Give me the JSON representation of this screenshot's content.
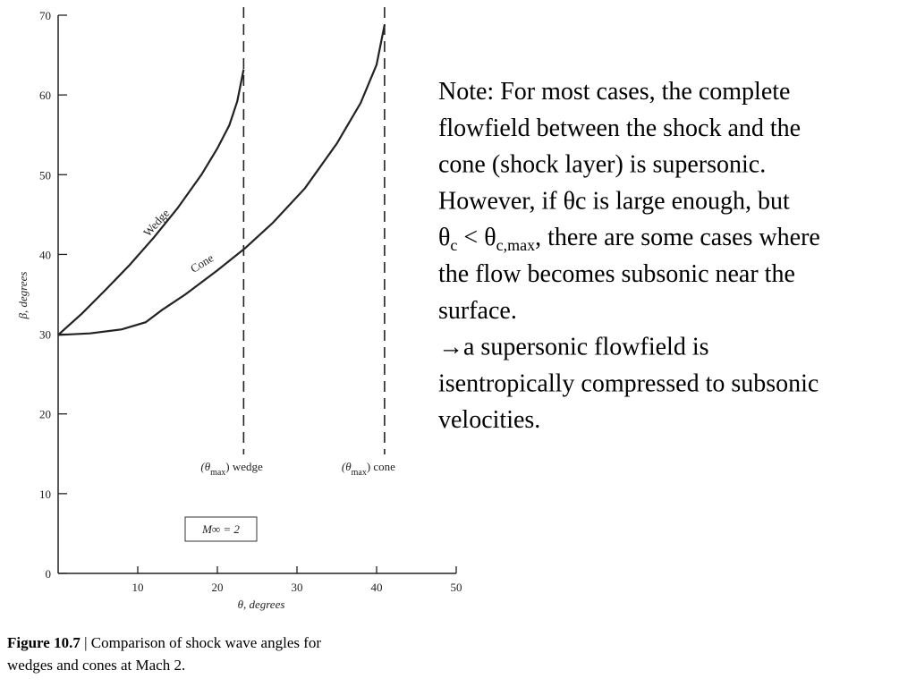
{
  "chart_data": {
    "type": "line",
    "xlabel": "θ, degrees",
    "ylabel": "β, degrees",
    "xlim": [
      0,
      50
    ],
    "xticks": [
      10,
      20,
      30,
      40,
      50
    ],
    "ylim": [
      0,
      70
    ],
    "yticks": [
      0,
      10,
      20,
      30,
      40,
      50,
      60,
      70
    ],
    "series": [
      {
        "name": "Wedge",
        "color": "#222222",
        "x": [
          0,
          3,
          6,
          9,
          12,
          15,
          18,
          20,
          21.5,
          22.5,
          23.3
        ],
        "values": [
          29.9,
          32.6,
          35.6,
          38.7,
          42.1,
          45.8,
          50.0,
          53.3,
          56.2,
          59.2,
          63.2
        ]
      },
      {
        "name": "Cone",
        "color": "#222222",
        "x": [
          0,
          4,
          8,
          11,
          13,
          16,
          20,
          23.5,
          27,
          31,
          35,
          38,
          40,
          41
        ],
        "values": [
          29.9,
          30.1,
          30.6,
          31.5,
          33.0,
          35.0,
          38.0,
          40.8,
          44.0,
          48.3,
          53.9,
          59.0,
          63.8,
          68.8
        ]
      }
    ],
    "vlines": [
      {
        "x": 23.3,
        "label": {
          "pre": "(θ",
          "sub": "max",
          "post": ") wedge"
        }
      },
      {
        "x": 41,
        "label": {
          "pre": "(θ",
          "sub": "max",
          "post": ") cone"
        }
      }
    ],
    "box": "M∞ = 2",
    "caption": {
      "bold": "Figure 10.7",
      "rest": " | Comparison of shock wave angles for",
      "line2": "wedges and cones at Mach 2."
    }
  },
  "note": {
    "lines": [
      "Note: For most cases, the complete",
      "flowfield between the shock and the",
      "cone (shock layer) is supersonic.",
      "However, if θc is large enough, but",
      [
        "θ",
        "c",
        " < θ",
        "c,max",
        ", there are some cases where"
      ],
      "the flow becomes subsonic near the",
      "surface.",
      "→a supersonic flowfield is",
      "isentropically compressed to subsonic",
      "velocities."
    ]
  }
}
